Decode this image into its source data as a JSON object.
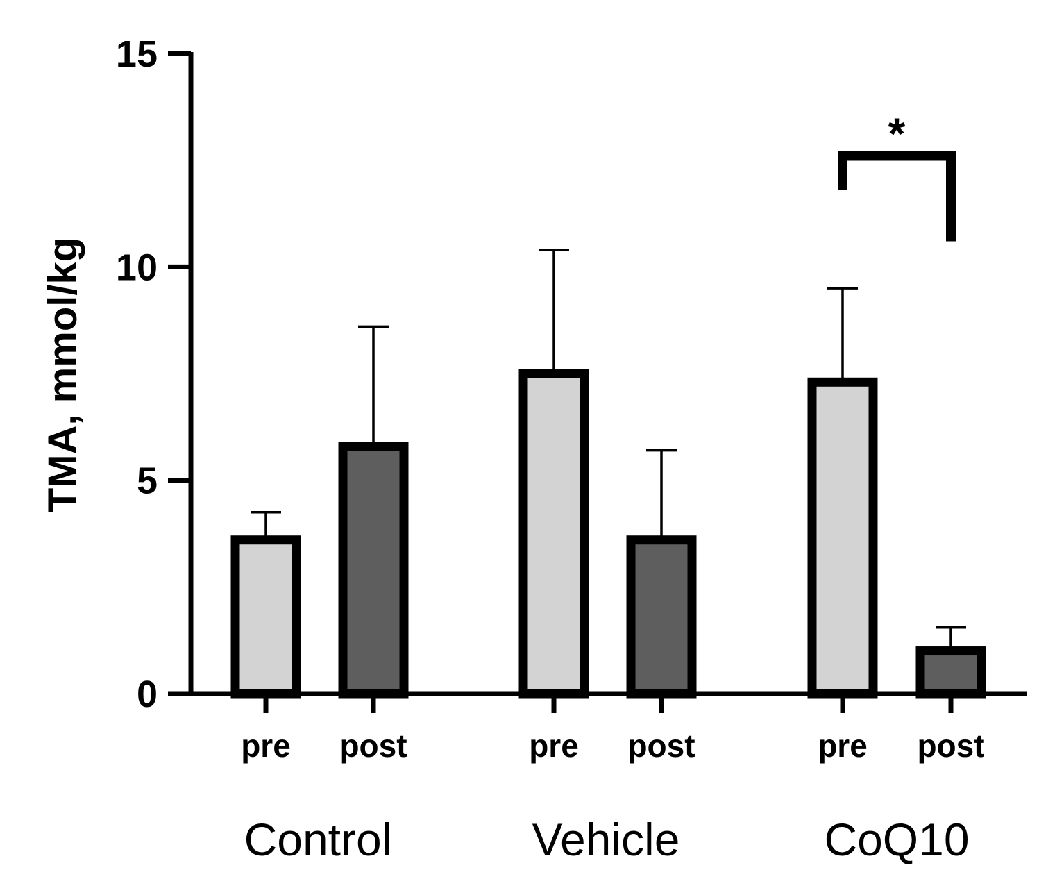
{
  "chart_data": {
    "type": "bar",
    "title": "",
    "xlabel": "",
    "ylabel": "TMA, mmol/kg",
    "ylim": [
      0,
      15
    ],
    "yticks": [
      0,
      5,
      10,
      15
    ],
    "ytick_labels": [
      "0",
      "5",
      "10",
      "15"
    ],
    "grid": false,
    "groups": [
      {
        "name": "Control",
        "bars": [
          {
            "label": "pre",
            "value": 3.6,
            "error": 0.65,
            "color": "#d3d3d3"
          },
          {
            "label": "post",
            "value": 5.8,
            "error": 2.8,
            "color": "#5e5e5e"
          }
        ]
      },
      {
        "name": "Vehicle",
        "bars": [
          {
            "label": "pre",
            "value": 7.5,
            "error": 2.9,
            "color": "#d3d3d3"
          },
          {
            "label": "post",
            "value": 3.6,
            "error": 2.1,
            "color": "#5e5e5e"
          }
        ]
      },
      {
        "name": "CoQ10",
        "bars": [
          {
            "label": "pre",
            "value": 7.3,
            "error": 2.2,
            "color": "#d3d3d3"
          },
          {
            "label": "post",
            "value": 1.0,
            "error": 0.55,
            "color": "#5e5e5e"
          }
        ]
      }
    ],
    "annotations": [
      {
        "type": "significance",
        "group": "CoQ10",
        "between": [
          "pre",
          "post"
        ],
        "text": "*",
        "bracket_y": 12.6,
        "left_end": 11.8,
        "right_end": 10.6
      }
    ]
  }
}
